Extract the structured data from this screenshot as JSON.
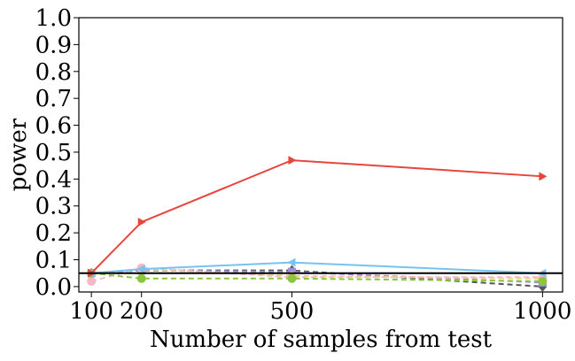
{
  "chart_data": {
    "type": "line",
    "xlabel": "Number of samples from test",
    "ylabel": "power",
    "x": [
      100,
      200,
      500,
      1000
    ],
    "xlim": [
      75,
      1040
    ],
    "ylim": [
      -0.02,
      1.0
    ],
    "xticks": [
      100,
      200,
      500,
      1000
    ],
    "yticks": [
      0.0,
      0.1,
      0.2,
      0.3,
      0.4,
      0.5,
      0.6,
      0.7,
      0.8,
      0.9,
      1.0
    ],
    "xtick_labels": [
      "100",
      "200",
      "500",
      "1000"
    ],
    "ytick_labels": [
      "0.0",
      "0.1",
      "0.2",
      "0.3",
      "0.4",
      "0.5",
      "0.6",
      "0.7",
      "0.8",
      "0.9",
      "1.0"
    ],
    "grid": false,
    "legend": "none",
    "reference_line": {
      "y": 0.05,
      "color": "#000000"
    },
    "series": [
      {
        "values": [
          0.05,
          0.24,
          0.47,
          0.41
        ],
        "color": "#e8453c",
        "marker": "triangle-right",
        "dashed": false
      },
      {
        "values": [
          0.05,
          0.065,
          0.09,
          0.05
        ],
        "color": "#74c3f0",
        "marker": "triangle-left",
        "dashed": false
      },
      {
        "values": [
          0.05,
          0.03,
          0.03,
          0.02
        ],
        "color": "#8cc63f",
        "marker": "circle",
        "dashed": true
      },
      {
        "values": [
          0.02,
          0.07,
          0.035,
          0.035
        ],
        "color": "#f6b8c4",
        "marker": "circle",
        "dashed": true
      },
      {
        "values": [
          0.05,
          0.065,
          0.04,
          0.03
        ],
        "color": "#f0d080",
        "marker": "circle",
        "dashed": true
      },
      {
        "values": [
          0.05,
          0.06,
          0.055,
          0.015
        ],
        "color": "#9b8fd9",
        "marker": "square",
        "dashed": true
      },
      {
        "values": [
          0.05,
          0.06,
          0.06,
          0.0
        ],
        "color": "#555555",
        "marker": "diamond",
        "dashed": true
      }
    ]
  }
}
